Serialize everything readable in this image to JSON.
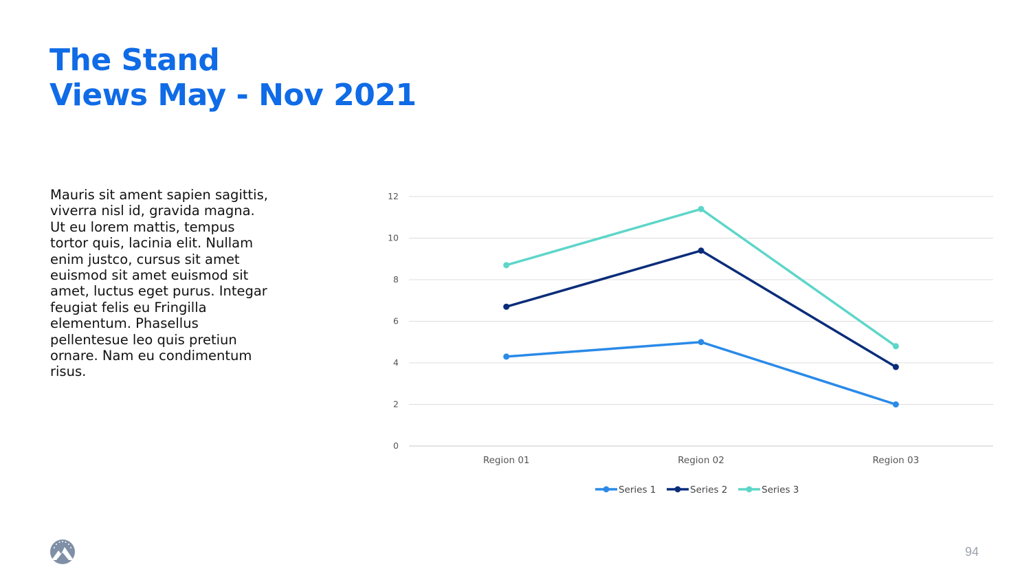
{
  "slide": {
    "title_line1": "The Stand",
    "title_line2": "Views May - Nov 2021",
    "body": "Mauris sit ament sapien sagittis, viverra nisl id, gravida magna. Ut eu lorem mattis, tempus tortor quis, lacinia elit. Nullam enim justco, cursus sit amet euismod sit amet euismod sit amet, luctus eget purus. Integar feugiat felis eu Fringilla elementum. Phasellus pellentesue leo quis pretiun ornare. Nam eu condimentum risus.",
    "page_number": "94",
    "title_color": "#0f6be6",
    "logo_icon": "mountain-star-logo-icon"
  },
  "chart_data": {
    "type": "line",
    "title": "",
    "xlabel": "",
    "ylabel": "",
    "categories": [
      "Region 01",
      "Region 02",
      "Region 03"
    ],
    "ylim": [
      0,
      12
    ],
    "yticks": [
      0,
      2,
      4,
      6,
      8,
      10,
      12
    ],
    "grid": true,
    "legend_position": "bottom",
    "series": [
      {
        "name": "Series 1",
        "values": [
          4.3,
          5.0,
          2.0
        ],
        "color": "#2a8ae8"
      },
      {
        "name": "Series 2",
        "values": [
          6.7,
          9.4,
          3.8
        ],
        "color": "#0a2d7a"
      },
      {
        "name": "Series 3",
        "values": [
          8.7,
          11.4,
          4.8
        ],
        "color": "#5dd6c9"
      }
    ]
  }
}
